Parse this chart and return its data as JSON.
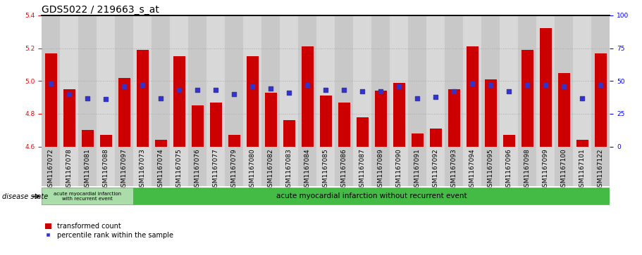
{
  "title": "GDS5022 / 219663_s_at",
  "samples": [
    "GSM1167072",
    "GSM1167078",
    "GSM1167081",
    "GSM1167088",
    "GSM1167097",
    "GSM1167073",
    "GSM1167074",
    "GSM1167075",
    "GSM1167076",
    "GSM1167077",
    "GSM1167079",
    "GSM1167080",
    "GSM1167082",
    "GSM1167083",
    "GSM1167084",
    "GSM1167085",
    "GSM1167086",
    "GSM1167087",
    "GSM1167089",
    "GSM1167090",
    "GSM1167091",
    "GSM1167092",
    "GSM1167093",
    "GSM1167094",
    "GSM1167095",
    "GSM1167096",
    "GSM1167098",
    "GSM1167099",
    "GSM1167100",
    "GSM1167101",
    "GSM1167122"
  ],
  "bar_values": [
    5.17,
    4.95,
    4.7,
    4.67,
    5.02,
    5.19,
    4.64,
    5.15,
    4.85,
    4.87,
    4.67,
    5.15,
    4.93,
    4.76,
    5.21,
    4.91,
    4.87,
    4.78,
    4.94,
    4.99,
    4.68,
    4.71,
    4.95,
    5.21,
    5.01,
    4.67,
    5.19,
    5.32,
    5.05,
    4.64,
    5.17
  ],
  "percentile_values": [
    48,
    40,
    37,
    36,
    46,
    47,
    37,
    43,
    43,
    43,
    40,
    46,
    44,
    41,
    47,
    43,
    43,
    42,
    42,
    46,
    37,
    38,
    42,
    48,
    47,
    42,
    47,
    47,
    46,
    37,
    47
  ],
  "ylim_left": [
    4.6,
    5.4
  ],
  "ylim_right": [
    0,
    100
  ],
  "yticks_left": [
    4.6,
    4.8,
    5.0,
    5.2,
    5.4
  ],
  "yticks_right": [
    0,
    25,
    50,
    75,
    100
  ],
  "bar_color": "#cc0000",
  "dot_color": "#3333cc",
  "bar_bottom": 4.6,
  "group1_count": 5,
  "group1_label": "acute myocardial infarction\nwith recurrent event",
  "group2_label": "acute myocardial infarction without recurrent event",
  "disease_state_label": "disease state",
  "legend_bar_label": "transformed count",
  "legend_dot_label": "percentile rank within the sample",
  "grid_color": "#aaaaaa",
  "bg_plot": "#d8d8d8",
  "group1_color": "#aaddaa",
  "group2_color": "#44bb44",
  "title_fontsize": 10,
  "tick_fontsize": 6.5,
  "label_fontsize": 7
}
